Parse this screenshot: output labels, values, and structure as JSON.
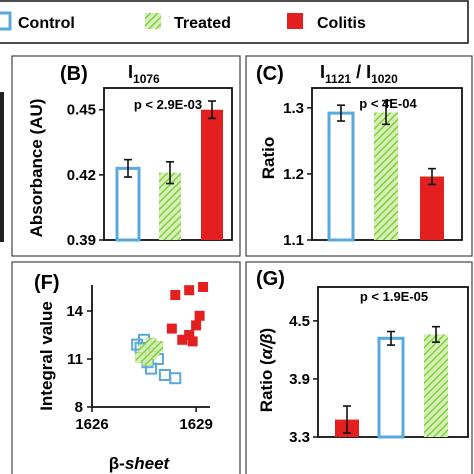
{
  "legend": [
    {
      "label": "Control",
      "style": "outline",
      "color": "#5aa9dc"
    },
    {
      "label": "Treated",
      "style": "hatch",
      "color": "#7fcf3f"
    },
    {
      "label": "Colitis",
      "style": "solid",
      "color": "#e31f1f"
    }
  ],
  "chart_data": [
    {
      "panel": "(B)",
      "type": "bar",
      "title": "I",
      "title_sub": "1076",
      "ylabel": "Absorbance (AU)",
      "ylim": [
        0.39,
        0.46
      ],
      "yticks": [
        0.39,
        0.42,
        0.45
      ],
      "ytick_labels": [
        "0.39",
        "0.42",
        "0.45"
      ],
      "categories": [
        "Control",
        "Treated",
        "Colitis"
      ],
      "values": [
        0.423,
        0.421,
        0.45
      ],
      "errors": [
        0.004,
        0.005,
        0.004
      ],
      "annotation": "p < 2.9E-03"
    },
    {
      "panel": "(C)",
      "type": "bar",
      "title_parts": [
        "I",
        "1121",
        " / I",
        "1020"
      ],
      "ylabel": "Ratio",
      "ylim": [
        1.1,
        1.33
      ],
      "yticks": [
        1.1,
        1.2,
        1.3
      ],
      "ytick_labels": [
        "1.1",
        "1.2",
        "1.3"
      ],
      "categories": [
        "Control",
        "Treated",
        "Colitis"
      ],
      "values": [
        1.292,
        1.293,
        1.196
      ],
      "errors": [
        0.012,
        0.018,
        0.012
      ],
      "annotation": "p < 4E-04"
    },
    {
      "panel": "(F)",
      "type": "scatter",
      "xlabel_prefix": "β-",
      "xlabel_italic": "sheet",
      "ylabel": "Integral value",
      "xlim": [
        1626,
        1629.4
      ],
      "ylim": [
        8,
        15.5
      ],
      "xticks": [
        1626,
        1629
      ],
      "xtick_labels": [
        "1626",
        "1629"
      ],
      "yticks": [
        8,
        11,
        14
      ],
      "ytick_labels": [
        "8",
        "11",
        "14"
      ],
      "series": [
        {
          "name": "Control",
          "points": [
            [
              1627.4,
              11.7
            ],
            [
              1627.6,
              11.2
            ],
            [
              1627.3,
              11.9
            ],
            [
              1627.7,
              10.4
            ],
            [
              1627.5,
              12.2
            ],
            [
              1627.9,
              11.0
            ],
            [
              1628.1,
              10.0
            ],
            [
              1628.4,
              9.8
            ],
            [
              1627.6,
              10.8
            ]
          ]
        },
        {
          "name": "Treated",
          "points": [
            [
              1627.5,
              11.6
            ],
            [
              1627.7,
              11.3
            ],
            [
              1627.6,
              10.9
            ],
            [
              1627.8,
              11.5
            ],
            [
              1627.9,
              11.8
            ],
            [
              1627.4,
              11.1
            ],
            [
              1627.7,
              12.0
            ]
          ]
        },
        {
          "name": "Colitis",
          "points": [
            [
              1628.3,
              12.9
            ],
            [
              1628.6,
              12.2
            ],
            [
              1628.9,
              12.1
            ],
            [
              1628.8,
              12.5
            ],
            [
              1629.0,
              13.1
            ],
            [
              1629.1,
              13.7
            ],
            [
              1628.4,
              15.0
            ],
            [
              1628.8,
              15.3
            ],
            [
              1629.2,
              15.5
            ]
          ]
        }
      ]
    },
    {
      "panel": "(G)",
      "type": "bar",
      "ylabel_prefix": "Ratio (",
      "ylabel_italic": "α/β",
      "ylabel_suffix": ")",
      "ylim": [
        3.3,
        4.85
      ],
      "yticks": [
        3.3,
        3.9,
        4.5
      ],
      "ytick_labels": [
        "3.3",
        "3.9",
        "4.5"
      ],
      "categories": [
        "Colitis",
        "Control",
        "Treated"
      ],
      "values": [
        3.48,
        4.32,
        4.36
      ],
      "errors": [
        0.14,
        0.07,
        0.08
      ],
      "annotation": "p < 1.9E-05"
    }
  ]
}
